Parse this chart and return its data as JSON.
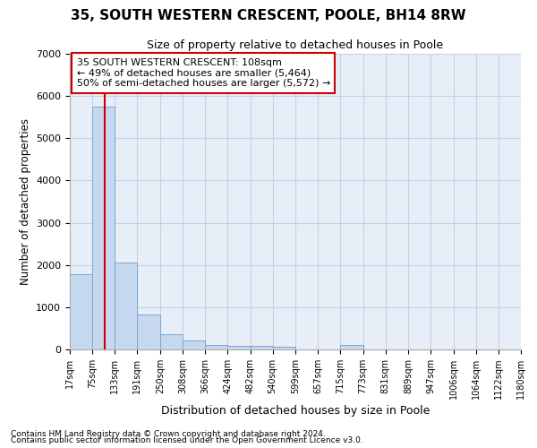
{
  "title1": "35, SOUTH WESTERN CRESCENT, POOLE, BH14 8RW",
  "title2": "Size of property relative to detached houses in Poole",
  "xlabel": "Distribution of detached houses by size in Poole",
  "ylabel": "Number of detached properties",
  "bar_edges": [
    17,
    75,
    133,
    191,
    250,
    308,
    366,
    424,
    482,
    540,
    599,
    657,
    715,
    773,
    831,
    889,
    947,
    1006,
    1064,
    1122,
    1180
  ],
  "bar_heights": [
    1780,
    5750,
    2050,
    820,
    360,
    220,
    115,
    90,
    80,
    60,
    0,
    0,
    100,
    0,
    0,
    0,
    0,
    0,
    0,
    0
  ],
  "bar_color": "#c5d8f0",
  "bar_edgecolor": "#7aa8d0",
  "property_size": 108,
  "property_size_label": "35 SOUTH WESTERN CRESCENT: 108sqm",
  "pct_smaller": "49% of detached houses are smaller (5,464)",
  "pct_larger": "50% of semi-detached houses are larger (5,572) →",
  "line_color": "#cc0000",
  "annotation_box_edge": "#cc0000",
  "ylim": [
    0,
    7000
  ],
  "yticks": [
    0,
    1000,
    2000,
    3000,
    4000,
    5000,
    6000,
    7000
  ],
  "footnote1": "Contains HM Land Registry data © Crown copyright and database right 2024.",
  "footnote2": "Contains public sector information licensed under the Open Government Licence v3.0.",
  "bg_color": "#e8eef8",
  "grid_color": "#c8d0e0"
}
